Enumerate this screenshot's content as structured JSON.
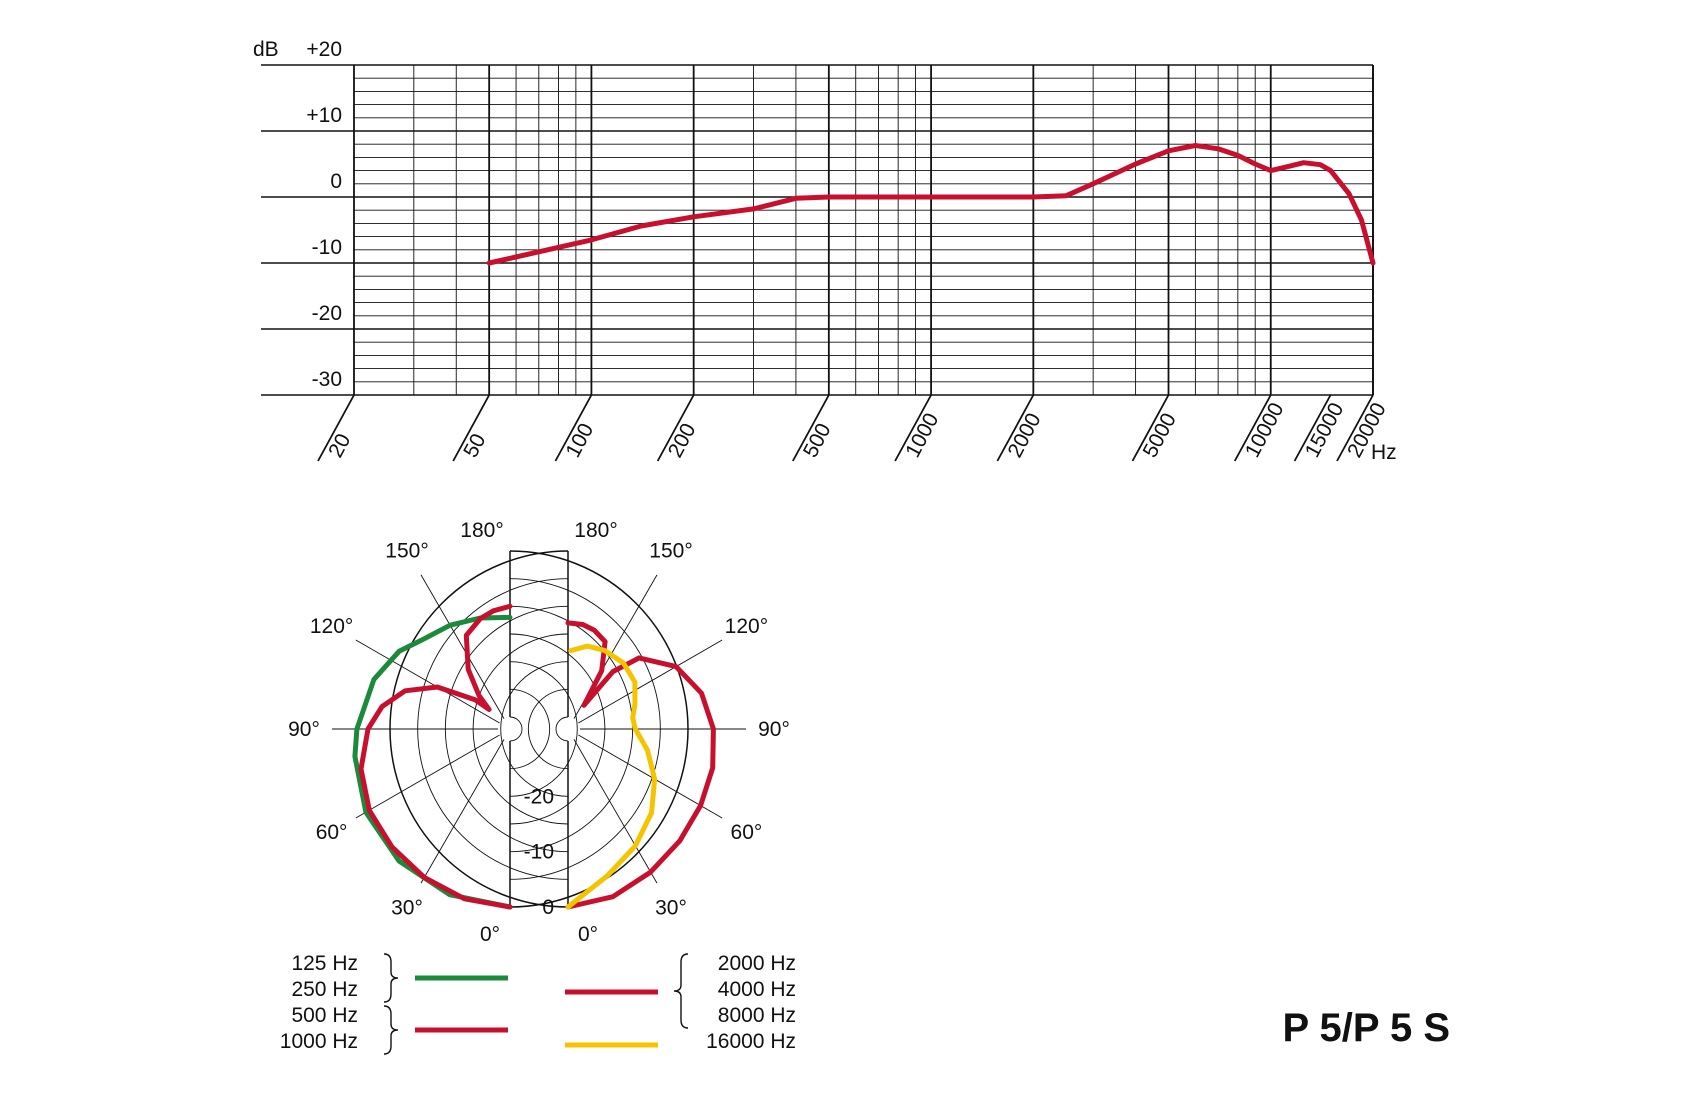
{
  "model_name": "P 5/P 5 S",
  "colors": {
    "red": "#c8102e",
    "green": "#1b8a3a",
    "yellow": "#f5c400",
    "grid": "#111111"
  },
  "chart_data": [
    {
      "type": "line",
      "x_scale": "log",
      "xlim": [
        20,
        20000
      ],
      "ylim": [
        -30,
        20
      ],
      "grid": true,
      "ylabel": "dB",
      "xlabel": "Hz",
      "y_ticks": [
        {
          "value": 20,
          "label": "+20"
        },
        {
          "value": 10,
          "label": "+10"
        },
        {
          "value": 0,
          "label": "0"
        },
        {
          "value": -10,
          "label": "-10"
        },
        {
          "value": -20,
          "label": "-20"
        },
        {
          "value": -30,
          "label": "-30"
        }
      ],
      "x_ticks": [
        {
          "value": 20,
          "label": "20"
        },
        {
          "value": 50,
          "label": "50"
        },
        {
          "value": 100,
          "label": "100"
        },
        {
          "value": 200,
          "label": "200"
        },
        {
          "value": 500,
          "label": "500"
        },
        {
          "value": 1000,
          "label": "1000"
        },
        {
          "value": 2000,
          "label": "2000"
        },
        {
          "value": 5000,
          "label": "5000"
        },
        {
          "value": 10000,
          "label": "10000"
        },
        {
          "value": 15000,
          "label": "15000"
        },
        {
          "value": 20000,
          "label": "20000"
        }
      ],
      "series": [
        {
          "color": "#c8102e",
          "points": [
            [
              50,
              -10
            ],
            [
              70,
              -8.3
            ],
            [
              100,
              -6.5
            ],
            [
              140,
              -4.4
            ],
            [
              200,
              -3
            ],
            [
              300,
              -1.8
            ],
            [
              400,
              -0.2
            ],
            [
              500,
              0
            ],
            [
              1000,
              0
            ],
            [
              2000,
              0
            ],
            [
              2500,
              0.2
            ],
            [
              3000,
              2
            ],
            [
              4000,
              5
            ],
            [
              5000,
              7
            ],
            [
              6000,
              7.8
            ],
            [
              7000,
              7.3
            ],
            [
              8000,
              6.3
            ],
            [
              9000,
              5
            ],
            [
              10000,
              4
            ],
            [
              11000,
              4.5
            ],
            [
              12500,
              5.2
            ],
            [
              14000,
              4.9
            ],
            [
              15000,
              4
            ],
            [
              17000,
              0.5
            ],
            [
              18500,
              -3.5
            ],
            [
              20000,
              -10
            ]
          ]
        }
      ]
    },
    {
      "type": "polar",
      "r_unit": "dB",
      "rlim": [
        -30,
        0
      ],
      "grid": true,
      "r_ticks": [
        {
          "value": 0,
          "label": "0"
        },
        {
          "value": -10,
          "label": "-10"
        },
        {
          "value": -20,
          "label": "-20"
        }
      ],
      "angle_ticks_left": [
        "0°",
        "30°",
        "60°",
        "90°",
        "120°",
        "150°",
        "180°"
      ],
      "angle_ticks_right": [
        "0°",
        "30°",
        "60°",
        "90°",
        "120°",
        "150°",
        "180°"
      ],
      "legend_left": {
        "groups": [
          {
            "items": [
              "125 Hz",
              "250 Hz"
            ],
            "color": "#1b8a3a"
          },
          {
            "items": [
              "500 Hz",
              "1000 Hz"
            ],
            "color": "#c8102e"
          }
        ]
      },
      "legend_right": {
        "groups": [
          {
            "items": [
              "2000 Hz",
              "4000 Hz",
              "8000 Hz"
            ],
            "color": "#c8102e"
          },
          {
            "items": [
              "16000 Hz"
            ],
            "color": "#f5c400"
          }
        ]
      },
      "series": [
        {
          "side": "left",
          "color": "#1b8a3a",
          "points": [
            [
              0,
              0
            ],
            [
              20,
              -0.3
            ],
            [
              40,
              -1
            ],
            [
              60,
              -2.1
            ],
            [
              80,
              -3.7
            ],
            [
              90,
              -4.5
            ],
            [
              110,
              -6
            ],
            [
              125,
              -7.7
            ],
            [
              135,
              -9.5
            ],
            [
              150,
              -10.5
            ],
            [
              165,
              -11.4
            ],
            [
              180,
              -12
            ]
          ]
        },
        {
          "side": "left",
          "color": "#c8102e",
          "points": [
            [
              0,
              0
            ],
            [
              15,
              -0.4
            ],
            [
              30,
              -1.2
            ],
            [
              45,
              -2
            ],
            [
              60,
              -2.8
            ],
            [
              75,
              -4.3
            ],
            [
              90,
              -6.5
            ],
            [
              100,
              -8.7
            ],
            [
              110,
              -12
            ],
            [
              120,
              -17
            ],
            [
              130,
              -24
            ],
            [
              133,
              -27
            ],
            [
              137,
              -24
            ],
            [
              145,
              -19
            ],
            [
              155,
              -13.5
            ],
            [
              165,
              -11.5
            ],
            [
              172,
              -10.6
            ],
            [
              180,
              -10
            ]
          ]
        },
        {
          "side": "right",
          "color": "#c8102e",
          "points": [
            [
              0,
              0
            ],
            [
              15,
              -0.8
            ],
            [
              30,
              -2.3
            ],
            [
              45,
              -3.6
            ],
            [
              60,
              -4.5
            ],
            [
              75,
              -5.1
            ],
            [
              90,
              -5.9
            ],
            [
              105,
              -7.2
            ],
            [
              120,
              -9.6
            ],
            [
              135,
              -14
            ],
            [
              142,
              -19
            ],
            [
              146,
              -27
            ],
            [
              150,
              -20
            ],
            [
              157,
              -15
            ],
            [
              165,
              -13.7
            ],
            [
              172,
              -13.1
            ],
            [
              180,
              -13
            ]
          ]
        },
        {
          "side": "right",
          "color": "#f5c400",
          "points": [
            [
              0,
              0
            ],
            [
              15,
              -4.7
            ],
            [
              30,
              -7.8
            ],
            [
              45,
              -10.8
            ],
            [
              60,
              -14.1
            ],
            [
              75,
              -17.3
            ],
            [
              90,
              -20
            ],
            [
              100,
              -20.3
            ],
            [
              110,
              -19.3
            ],
            [
              125,
              -17.4
            ],
            [
              140,
              -16.6
            ],
            [
              155,
              -16.5
            ],
            [
              167,
              -16.8
            ],
            [
              178,
              -18
            ]
          ]
        }
      ]
    }
  ]
}
